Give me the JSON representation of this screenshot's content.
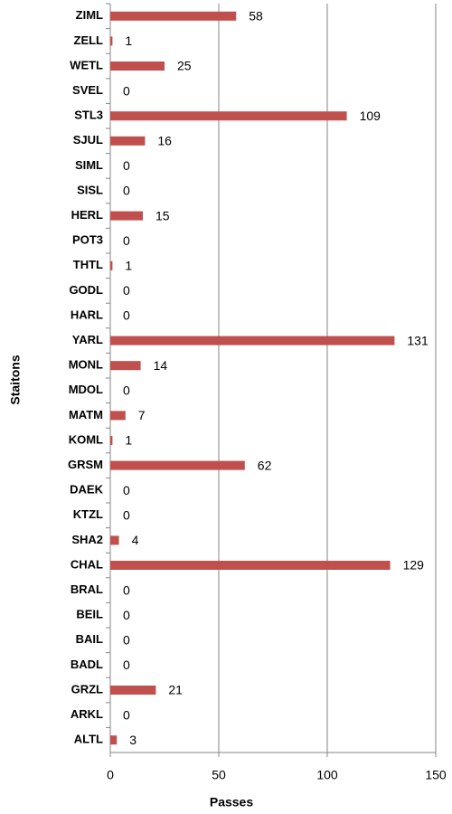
{
  "chart_data": {
    "type": "bar",
    "orientation": "horizontal",
    "x_label": "Passes",
    "y_label": "Staitons",
    "categories": [
      "ZIML",
      "ZELL",
      "WETL",
      "SVEL",
      "STL3",
      "SJUL",
      "SIML",
      "SISL",
      "HERL",
      "POT3",
      "THTL",
      "GODL",
      "HARL",
      "YARL",
      "MONL",
      "MDOL",
      "MATM",
      "KOML",
      "GRSM",
      "DAEK",
      "KTZL",
      "SHA2",
      "CHAL",
      "BRAL",
      "BEIL",
      "BAIL",
      "BADL",
      "GRZL",
      "ARKL",
      "ALTL"
    ],
    "values": [
      58,
      1,
      25,
      0,
      109,
      16,
      0,
      0,
      15,
      0,
      1,
      0,
      0,
      131,
      14,
      0,
      7,
      1,
      62,
      0,
      0,
      4,
      129,
      0,
      0,
      0,
      0,
      21,
      0,
      3
    ],
    "color": "#c0504d",
    "xlim": [
      0,
      150
    ],
    "xticks": [
      0,
      50,
      100,
      150
    ],
    "grid": true
  }
}
